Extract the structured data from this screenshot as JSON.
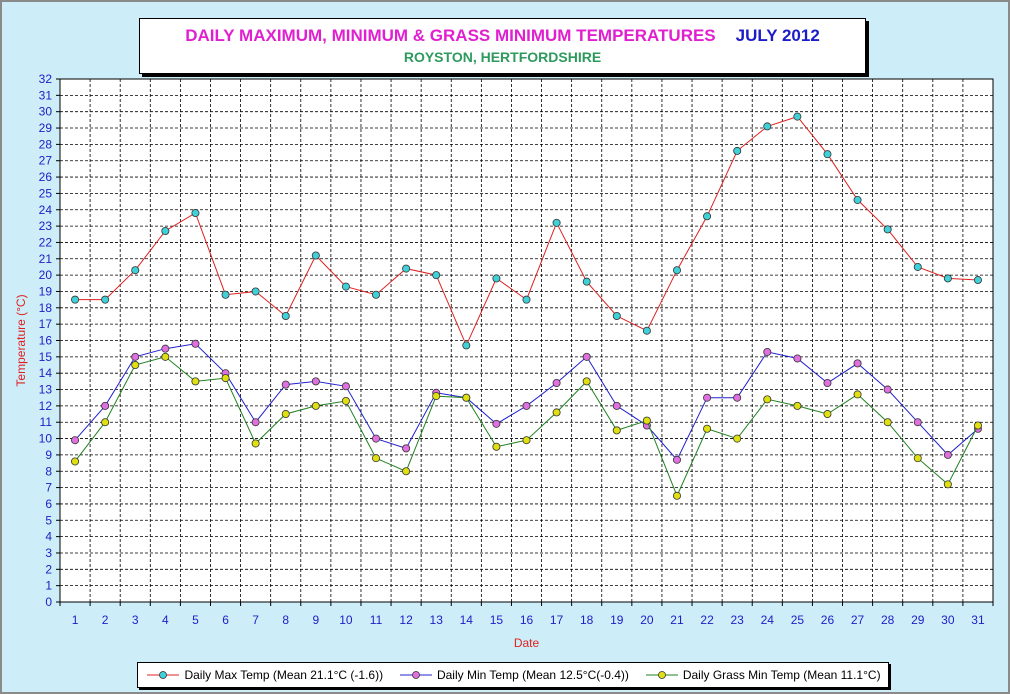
{
  "title": {
    "main": "DAILY MAXIMUM, MINIMUM & GRASS MINIMUM TEMPERATURES",
    "date": "JULY 2012",
    "sub": "ROYSTON, HERTFORDSHIRE"
  },
  "legend": {
    "max": "Daily Max Temp (Mean 21.1°C (-1.6))",
    "min": "Daily Min Temp (Mean 12.5°C(-0.4))",
    "grass": "Daily Grass Min Temp (Mean 11.1°C)"
  },
  "chart_data": {
    "type": "line",
    "xlabel": "Date",
    "ylabel": "Temperature (°C)",
    "ylim": [
      0,
      32
    ],
    "grid": true,
    "legend_position": "bottom",
    "x": [
      1,
      2,
      3,
      4,
      5,
      6,
      7,
      8,
      9,
      10,
      11,
      12,
      13,
      14,
      15,
      16,
      17,
      18,
      19,
      20,
      21,
      22,
      23,
      24,
      25,
      26,
      27,
      28,
      29,
      30,
      31
    ],
    "series": [
      {
        "name": "Daily Max Temp (Mean 21.1°C (-1.6))",
        "line_color": "#e02020",
        "marker_color": "#40d0d8",
        "values": [
          18.5,
          18.5,
          20.3,
          22.7,
          23.8,
          18.8,
          19.0,
          17.5,
          21.2,
          19.3,
          18.8,
          20.4,
          20.0,
          15.7,
          19.8,
          18.5,
          23.2,
          19.6,
          17.5,
          16.6,
          20.3,
          23.6,
          27.6,
          29.1,
          29.7,
          27.4,
          24.6,
          22.8,
          20.5,
          19.8,
          19.7
        ]
      },
      {
        "name": "Daily Min Temp (Mean 12.5°C(-0.4))",
        "line_color": "#2020d0",
        "marker_color": "#e070e0",
        "values": [
          9.9,
          12.0,
          15.0,
          15.5,
          15.8,
          14.0,
          11.0,
          13.3,
          13.5,
          13.2,
          10.0,
          9.4,
          12.8,
          12.5,
          10.9,
          12.0,
          13.4,
          15.0,
          12.0,
          10.8,
          8.7,
          12.5,
          12.5,
          15.3,
          14.9,
          13.4,
          14.6,
          13.0,
          11.0,
          9.0,
          10.6
        ]
      },
      {
        "name": "Daily Grass Min Temp (Mean 11.1°C)",
        "line_color": "#208020",
        "marker_color": "#e0e010",
        "values": [
          8.6,
          11.0,
          14.5,
          15.0,
          13.5,
          13.7,
          9.7,
          11.5,
          12.0,
          12.3,
          8.8,
          8.0,
          12.6,
          12.5,
          9.5,
          9.9,
          11.6,
          13.5,
          10.5,
          11.1,
          6.5,
          10.6,
          10.0,
          12.4,
          12.0,
          11.5,
          12.7,
          11.0,
          8.8,
          7.2,
          10.8
        ]
      }
    ]
  }
}
